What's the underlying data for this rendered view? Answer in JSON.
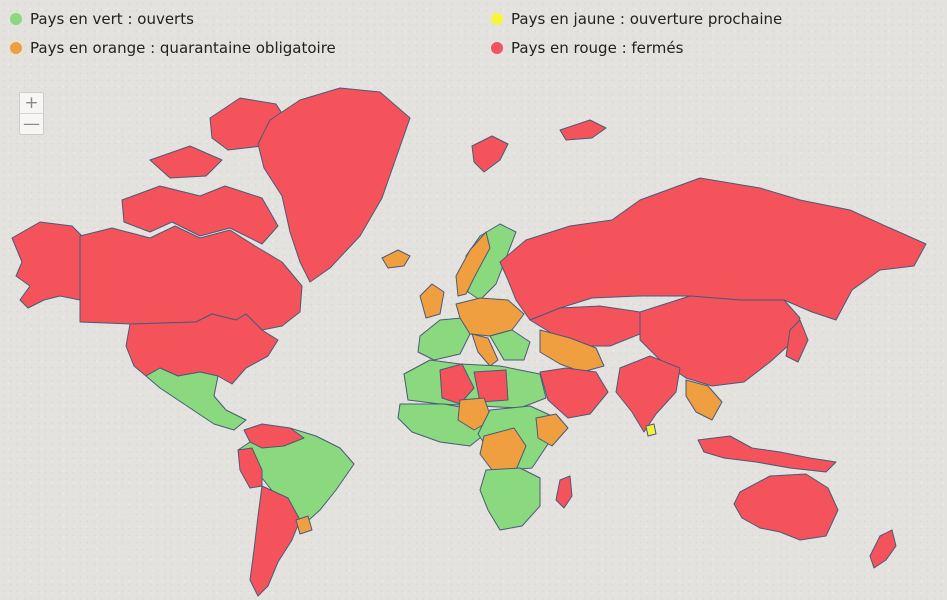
{
  "legend": {
    "items": [
      {
        "label": "Pays en vert : ouverts",
        "color": "#8ad97f"
      },
      {
        "label": "Pays en jaune : ouverture prochaine",
        "color": "#f7f73a"
      },
      {
        "label": "Pays en orange : quarantaine obligatoire",
        "color": "#ef9f40"
      },
      {
        "label": "Pays en rouge : fermés",
        "color": "#f5535c"
      }
    ]
  },
  "zoom": {
    "in_label": "+",
    "out_label": "—"
  },
  "map": {
    "status_colors": {
      "ouverts": "#8ad97f",
      "ouverture prochaine": "#f1f13b",
      "quarantaine obligatoire": "#ef9f40",
      "fermés": "#f5535c"
    }
  }
}
